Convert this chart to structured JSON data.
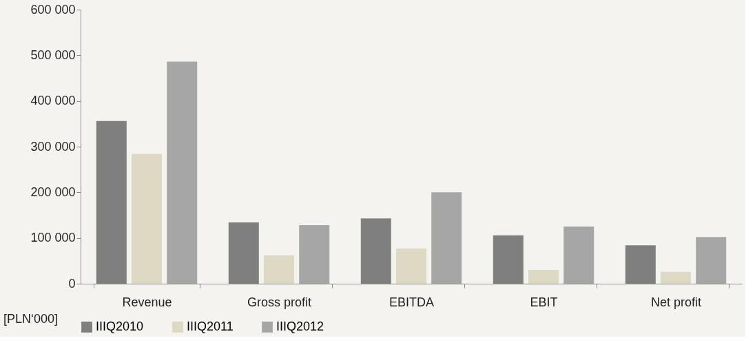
{
  "chart_data": {
    "type": "bar",
    "categories": [
      "Revenue",
      "Gross profit",
      "EBITDA",
      "EBIT",
      "Net profit"
    ],
    "series": [
      {
        "name": "IIIQ2010",
        "color": "#7f7f7f",
        "values": [
          356000,
          134000,
          143000,
          106000,
          84000
        ]
      },
      {
        "name": "IIIQ2011",
        "color": "#ddd9c3",
        "values": [
          284000,
          62000,
          77000,
          30000,
          26000
        ]
      },
      {
        "name": "IIIQ2012",
        "color": "#a6a6a6",
        "values": [
          486000,
          128000,
          200000,
          125000,
          102000
        ]
      }
    ],
    "ylim": [
      0,
      600000
    ],
    "yticks": [
      0,
      {
        "value": 100000,
        "label": "100 000"
      },
      {
        "value": 200000,
        "label": "200 000"
      },
      {
        "value": 300000,
        "label": "300 000"
      },
      {
        "value": 400000,
        "label": "400 000"
      },
      {
        "value": 500000,
        "label": "500 000"
      },
      {
        "value": 600000,
        "label": "600 000"
      }
    ],
    "annotations": [
      "[PLN‘000]"
    ],
    "grid": false,
    "legend": "bottom"
  }
}
